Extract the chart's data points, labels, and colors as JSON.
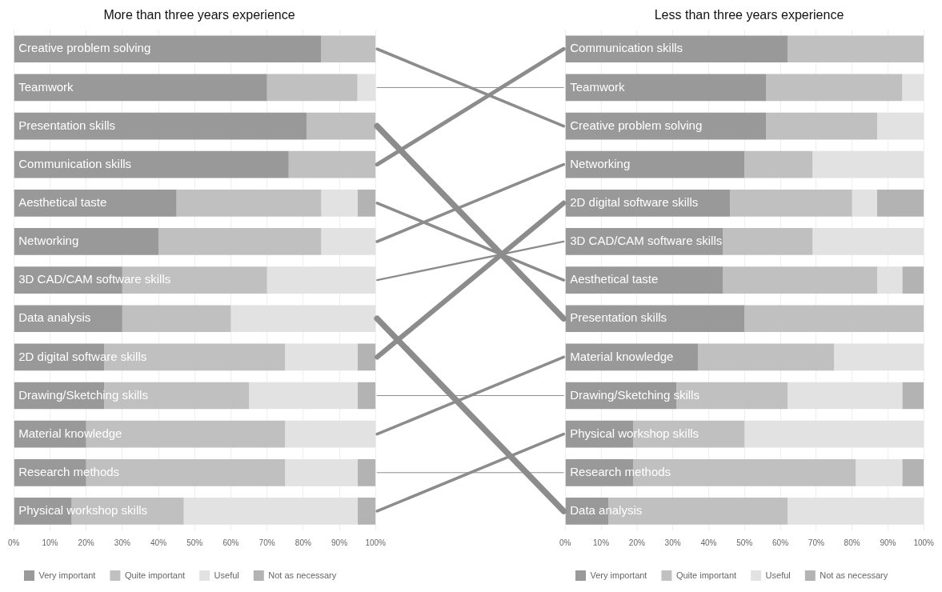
{
  "chart_data": [
    {
      "type": "bar",
      "orientation": "horizontal",
      "stacked": true,
      "title": "More than three years experience",
      "categories": [
        "Creative problem solving",
        "Teamwork",
        "Presentation skills",
        "Communication skills",
        "Aesthetical taste",
        "Networking",
        "3D CAD/CAM software skills",
        "Data analysis",
        "2D digital software skills",
        "Drawing/Sketching skills",
        "Material knowledge",
        "Research methods",
        "Physical workshop skills"
      ],
      "series": [
        {
          "name": "Very important",
          "color": "#999999",
          "values": [
            85,
            70,
            81,
            76,
            45,
            40,
            30,
            30,
            25,
            25,
            20,
            20,
            16
          ]
        },
        {
          "name": "Quite important",
          "color": "#c0c0c0",
          "values": [
            15,
            25,
            19,
            24,
            40,
            45,
            40,
            30,
            50,
            40,
            55,
            55,
            31
          ]
        },
        {
          "name": "Useful",
          "color": "#e2e2e2",
          "values": [
            null,
            5,
            null,
            null,
            10,
            15,
            30,
            40,
            20,
            30,
            25,
            20,
            48
          ]
        },
        {
          "name": "Not as necessary",
          "color": "#b3b3b3",
          "values": [
            null,
            null,
            null,
            null,
            5,
            null,
            null,
            null,
            5,
            5,
            null,
            5,
            5
          ]
        }
      ],
      "xlim": [
        0,
        100
      ],
      "xticks": [
        {
          "value": 0,
          "label": "0%"
        },
        {
          "value": 10,
          "label": "10%"
        },
        {
          "value": 20,
          "label": "20%"
        },
        {
          "value": 30,
          "label": "30%"
        },
        {
          "value": 40,
          "label": "40%"
        },
        {
          "value": 50,
          "label": "50%"
        },
        {
          "value": 60,
          "label": "60%"
        },
        {
          "value": 70,
          "label": "70%"
        },
        {
          "value": 80,
          "label": "80%"
        },
        {
          "value": 90,
          "label": "90%"
        },
        {
          "value": 100,
          "label": "100%"
        }
      ],
      "grid": "x",
      "legend": "bottom left"
    },
    {
      "type": "bar",
      "orientation": "horizontal",
      "stacked": true,
      "title": "Less than three years experience",
      "categories": [
        "Communication skills",
        "Teamwork",
        "Creative problem solving",
        "Networking",
        "2D digital software skills",
        "3D CAD/CAM software skills",
        "Aesthetical taste",
        "Presentation skills",
        "Material knowledge",
        "Drawing/Sketching skills",
        "Physical workshop skills",
        "Research methods",
        "Data analysis"
      ],
      "series": [
        {
          "name": "Very important",
          "color": "#999999",
          "values": [
            62,
            56,
            56,
            50,
            46,
            44,
            44,
            50,
            37,
            31,
            19,
            19,
            12
          ]
        },
        {
          "name": "Quite important",
          "color": "#c0c0c0",
          "values": [
            38,
            38,
            31,
            19,
            34,
            25,
            43,
            50,
            38,
            31,
            31,
            62,
            50
          ]
        },
        {
          "name": "Useful",
          "color": "#e2e2e2",
          "values": [
            null,
            6,
            13,
            31,
            7,
            31,
            7,
            null,
            25,
            32,
            50,
            13,
            38
          ]
        },
        {
          "name": "Not as necessary",
          "color": "#b3b3b3",
          "values": [
            null,
            null,
            null,
            null,
            13,
            null,
            6,
            null,
            null,
            6,
            null,
            6,
            null
          ]
        }
      ],
      "xlim": [
        0,
        100
      ],
      "xticks": [
        {
          "value": 0,
          "label": "0%"
        },
        {
          "value": 10,
          "label": "10%"
        },
        {
          "value": 20,
          "label": "20%"
        },
        {
          "value": 30,
          "label": "30%"
        },
        {
          "value": 40,
          "label": "40%"
        },
        {
          "value": 50,
          "label": "50%"
        },
        {
          "value": 60,
          "label": "60%"
        },
        {
          "value": 70,
          "label": "70%"
        },
        {
          "value": 80,
          "label": "80%"
        },
        {
          "value": 90,
          "label": "90%"
        },
        {
          "value": 100,
          "label": "100%"
        }
      ],
      "grid": "x",
      "legend": "bottom left"
    }
  ]
}
